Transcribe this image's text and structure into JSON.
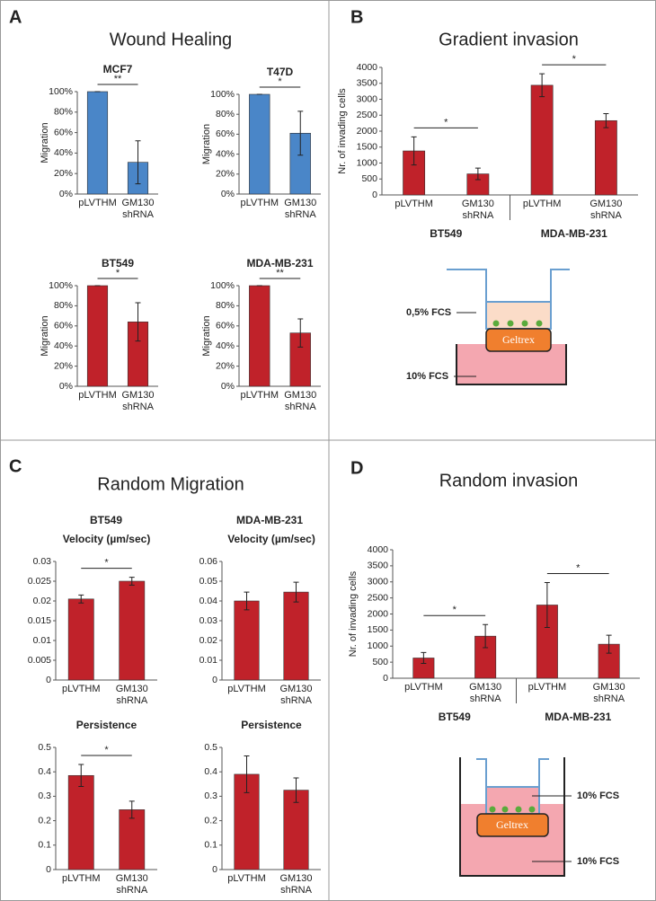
{
  "panels": [
    {
      "letter": "A",
      "title": "Wound Healing"
    },
    {
      "letter": "B",
      "title": "Gradient invasion"
    },
    {
      "letter": "C",
      "title": "Random Migration",
      "columns": [
        "BT549",
        "MDA-MB-231"
      ]
    },
    {
      "letter": "D",
      "title": "Random invasion"
    }
  ],
  "diagrams": [
    {
      "top_label": "0,5% FCS",
      "gel": "Geltrex",
      "bottom_label": "10% FCS"
    },
    {
      "top_label": "10% FCS",
      "gel": "Geltrex",
      "bottom_label": "10% FCS"
    }
  ],
  "chart_data": [
    {
      "type": "bar",
      "title": "MCF7",
      "y_label": "Migration",
      "color": "#4a86c8",
      "categories": [
        "pLVTHM",
        "GM130 shRNA"
      ],
      "values": [
        100,
        31
      ],
      "errors": [
        0,
        21
      ],
      "significance": [
        "**"
      ],
      "ylim": [
        0,
        100
      ],
      "yticks": [
        {
          "value": 0,
          "label": "0%"
        },
        {
          "value": 20,
          "label": "20%"
        },
        {
          "value": 40,
          "label": "40%"
        },
        {
          "value": 60,
          "label": "60%"
        },
        {
          "value": 80,
          "label": "80%"
        },
        {
          "value": 100,
          "label": "100%"
        }
      ]
    },
    {
      "type": "bar",
      "title": "T47D",
      "y_label": "Migration",
      "color": "#4a86c8",
      "categories": [
        "pLVTHM",
        "GM130 shRNA"
      ],
      "values": [
        100,
        61
      ],
      "errors": [
        0,
        22
      ],
      "significance": [
        "*"
      ],
      "ylim": [
        0,
        100
      ],
      "yticks": [
        {
          "value": 0,
          "label": "0%"
        },
        {
          "value": 20,
          "label": "20%"
        },
        {
          "value": 40,
          "label": "40%"
        },
        {
          "value": 60,
          "label": "60%"
        },
        {
          "value": 80,
          "label": "80%"
        },
        {
          "value": 100,
          "label": "100%"
        }
      ]
    },
    {
      "type": "bar",
      "title": "BT549",
      "y_label": "Migration",
      "color": "#c0222a",
      "categories": [
        "pLVTHM",
        "GM130 shRNA"
      ],
      "values": [
        100,
        64
      ],
      "errors": [
        0,
        19
      ],
      "significance": [
        "*"
      ],
      "ylim": [
        0,
        100
      ],
      "yticks": [
        {
          "value": 0,
          "label": "0%"
        },
        {
          "value": 20,
          "label": "20%"
        },
        {
          "value": 40,
          "label": "40%"
        },
        {
          "value": 60,
          "label": "60%"
        },
        {
          "value": 80,
          "label": "80%"
        },
        {
          "value": 100,
          "label": "100%"
        }
      ]
    },
    {
      "type": "bar",
      "title": "MDA-MB-231",
      "y_label": "Migration",
      "color": "#c0222a",
      "categories": [
        "pLVTHM",
        "GM130 shRNA"
      ],
      "values": [
        100,
        53
      ],
      "errors": [
        0,
        14
      ],
      "significance": [
        "**"
      ],
      "ylim": [
        0,
        100
      ],
      "yticks": [
        {
          "value": 0,
          "label": "0%"
        },
        {
          "value": 20,
          "label": "20%"
        },
        {
          "value": 40,
          "label": "40%"
        },
        {
          "value": 60,
          "label": "60%"
        },
        {
          "value": 80,
          "label": "80%"
        },
        {
          "value": 100,
          "label": "100%"
        }
      ]
    },
    {
      "type": "bar",
      "y_label": "Nr. of invading cells",
      "color": "#c0222a",
      "categories": [
        "pLVTHM",
        "GM130 shRNA",
        "pLVTHM",
        "GM130 shRNA"
      ],
      "groups": [
        "BT549",
        "MDA-MB-231"
      ],
      "values": [
        1380,
        660,
        3440,
        2330
      ],
      "errors": [
        440,
        180,
        360,
        220
      ],
      "significance": [
        "*",
        "*"
      ],
      "ylim": [
        0,
        4000
      ],
      "yticks": [
        0,
        500,
        1000,
        1500,
        2000,
        2500,
        3000,
        3500,
        4000
      ]
    },
    {
      "type": "bar",
      "title": "Velocity (µm/sec)",
      "color": "#c0222a",
      "categories": [
        "pLVTHM",
        "GM130 shRNA"
      ],
      "values": [
        0.0205,
        0.025
      ],
      "errors": [
        0.001,
        0.001
      ],
      "significance": [
        "*"
      ],
      "ylim": [
        0,
        0.03
      ],
      "yticks": [
        0,
        0.005,
        0.01,
        0.015,
        0.02,
        0.025,
        0.03
      ]
    },
    {
      "type": "bar",
      "title": "Velocity (µm/sec)",
      "color": "#c0222a",
      "categories": [
        "pLVTHM",
        "GM130 shRNA"
      ],
      "values": [
        0.04,
        0.0445
      ],
      "errors": [
        0.0045,
        0.005
      ],
      "ylim": [
        0,
        0.06
      ],
      "yticks": [
        0,
        0.01,
        0.02,
        0.03,
        0.04,
        0.05,
        0.06
      ]
    },
    {
      "type": "bar",
      "title": "Persistence",
      "color": "#c0222a",
      "categories": [
        "pLVTHM",
        "GM130 shRNA"
      ],
      "values": [
        0.385,
        0.245
      ],
      "errors": [
        0.045,
        0.035
      ],
      "significance": [
        "*"
      ],
      "ylim": [
        0,
        0.5
      ],
      "yticks": [
        0,
        0.1,
        0.2,
        0.3,
        0.4,
        0.5
      ]
    },
    {
      "type": "bar",
      "title": "Persistence",
      "color": "#c0222a",
      "categories": [
        "pLVTHM",
        "GM130 shRNA"
      ],
      "values": [
        0.39,
        0.325
      ],
      "errors": [
        0.075,
        0.05
      ],
      "ylim": [
        0,
        0.5
      ],
      "yticks": [
        0,
        0.1,
        0.2,
        0.3,
        0.4,
        0.5
      ]
    },
    {
      "type": "bar",
      "y_label": "Nr. of invading cells",
      "color": "#c0222a",
      "categories": [
        "pLVTHM",
        "GM130 shRNA",
        "pLVTHM",
        "GM130 shRNA"
      ],
      "groups": [
        "BT549",
        "MDA-MB-231"
      ],
      "values": [
        630,
        1310,
        2280,
        1060
      ],
      "errors": [
        170,
        360,
        700,
        280
      ],
      "significance": [
        "*",
        "*"
      ],
      "ylim": [
        0,
        4000
      ],
      "yticks": [
        0,
        500,
        1000,
        1500,
        2000,
        2500,
        3000,
        3500,
        4000
      ]
    }
  ]
}
